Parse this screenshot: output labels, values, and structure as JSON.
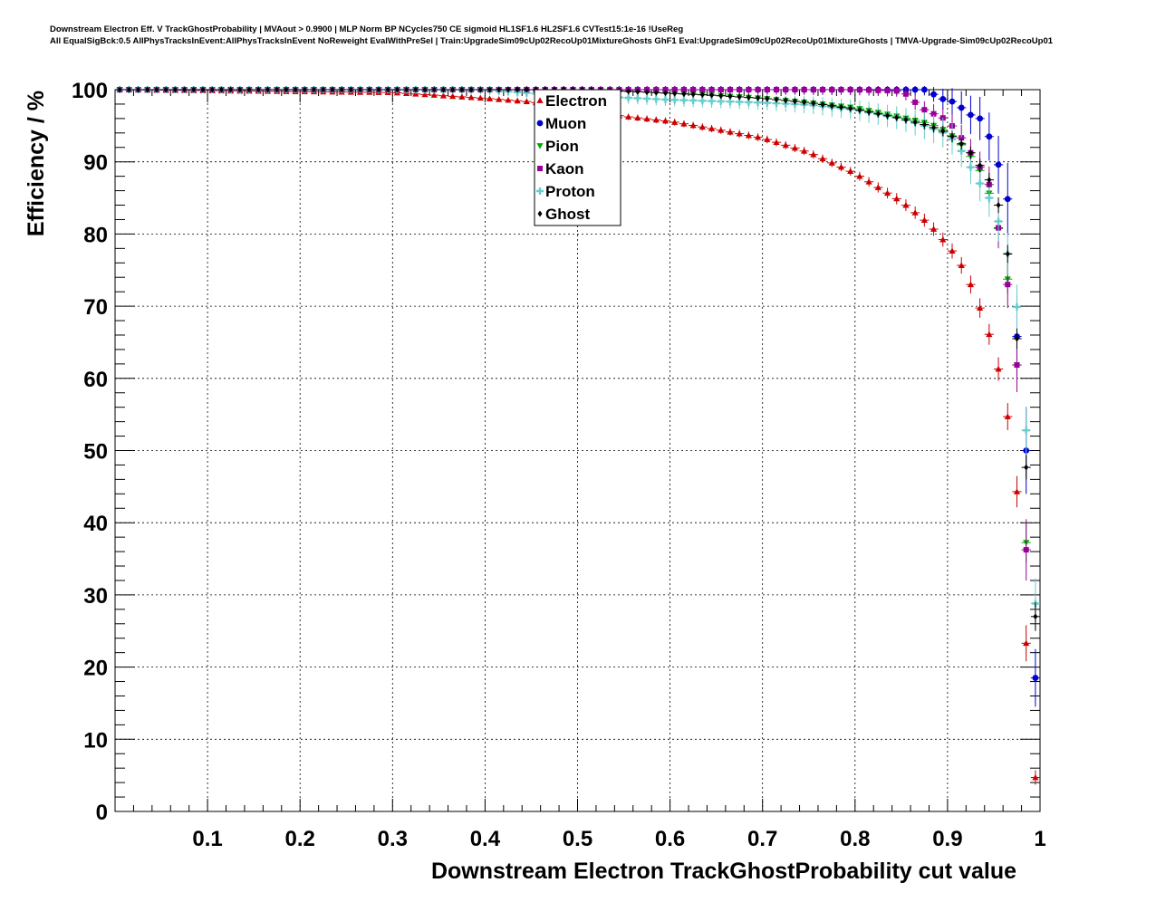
{
  "chart_data": {
    "type": "scatter",
    "title_lines": [
      "Downstream Electron Eff. V TrackGhostProbability | MVAout > 0.9900 | MLP Norm BP NCycles750 CE sigmoid HL1SF1.6 HL2SF1.6 CVTest15:1e-16 !UseReg",
      "All EqualSigBck:0.5 AllPhysTracksInEvent:AllPhysTracksInEvent NoReweight EvalWithPreSel | Train:UpgradeSim09cUp02RecoUp01MixtureGhosts GhF1 Eval:UpgradeSim09cUp02RecoUp01MixtureGhosts | TMVA-Upgrade-Sim09cUp02RecoUp01"
    ],
    "xlabel": "Downstream Electron TrackGhostProbability cut value",
    "ylabel": "Efficiency / %",
    "xlim": [
      0,
      1
    ],
    "ylim": [
      0,
      100
    ],
    "x_tick_labels": [
      "0.1",
      "0.2",
      "0.3",
      "0.4",
      "0.5",
      "0.6",
      "0.7",
      "0.8",
      "0.9",
      "1"
    ],
    "y_tick_labels": [
      "0",
      "10",
      "20",
      "30",
      "40",
      "50",
      "60",
      "70",
      "80",
      "90",
      "100"
    ],
    "grid": true,
    "legend_position": "top-center",
    "series": [
      {
        "name": "Electron",
        "color": "#cc0000",
        "marker": "triangle-up",
        "anchors": [
          [
            0.0,
            100
          ],
          [
            0.3,
            99.6
          ],
          [
            0.35,
            99.2
          ],
          [
            0.4,
            98.8
          ],
          [
            0.45,
            98.3
          ],
          [
            0.5,
            97.3
          ],
          [
            0.55,
            96.3
          ],
          [
            0.6,
            95.6
          ],
          [
            0.65,
            94.5
          ],
          [
            0.7,
            93.3
          ],
          [
            0.75,
            91.3
          ],
          [
            0.8,
            88.4
          ],
          [
            0.85,
            84.5
          ],
          [
            0.88,
            81.4
          ],
          [
            0.9,
            78.5
          ],
          [
            0.91,
            76.8
          ],
          [
            0.92,
            74.5
          ],
          [
            0.93,
            71.5
          ],
          [
            0.94,
            68.0
          ],
          [
            0.95,
            64.2
          ],
          [
            0.96,
            58.4
          ],
          [
            0.97,
            51.0
          ],
          [
            0.98,
            37.6
          ],
          [
            0.985,
            23.3
          ],
          [
            0.99,
            18.5
          ],
          [
            0.995,
            4.7
          ]
        ],
        "err": [
          [
            0.0,
            0.1
          ],
          [
            0.8,
            0.6
          ],
          [
            0.9,
            1.0
          ],
          [
            0.95,
            1.5
          ],
          [
            0.97,
            2.0
          ],
          [
            0.985,
            2.5
          ],
          [
            0.995,
            1.0
          ]
        ]
      },
      {
        "name": "Muon",
        "color": "#0000cc",
        "marker": "circle",
        "anchors": [
          [
            0.0,
            100
          ],
          [
            0.88,
            100
          ],
          [
            0.89,
            98.7
          ],
          [
            0.9,
            98.7
          ],
          [
            0.91,
            98.0
          ],
          [
            0.92,
            97.0
          ],
          [
            0.93,
            96.0
          ],
          [
            0.94,
            96.0
          ],
          [
            0.95,
            91.0
          ],
          [
            0.96,
            88.2
          ],
          [
            0.97,
            81.5
          ],
          [
            0.975,
            65.8
          ],
          [
            0.985,
            50.0
          ],
          [
            0.995,
            18.5
          ]
        ],
        "err": [
          [
            0.0,
            0.1
          ],
          [
            0.88,
            0.8
          ],
          [
            0.92,
            2.5
          ],
          [
            0.95,
            3.5
          ],
          [
            0.97,
            5.5
          ],
          [
            0.985,
            6.0
          ],
          [
            0.995,
            4.0
          ]
        ]
      },
      {
        "name": "Pion",
        "color": "#00aa00",
        "marker": "triangle-down",
        "anchors": [
          [
            0.0,
            100
          ],
          [
            0.5,
            100
          ],
          [
            0.55,
            99.8
          ],
          [
            0.6,
            99.5
          ],
          [
            0.65,
            99.2
          ],
          [
            0.7,
            98.8
          ],
          [
            0.75,
            98.2
          ],
          [
            0.8,
            97.5
          ],
          [
            0.85,
            96.2
          ],
          [
            0.88,
            95.3
          ],
          [
            0.9,
            94.2
          ],
          [
            0.91,
            93.0
          ],
          [
            0.92,
            91.7
          ],
          [
            0.93,
            89.8
          ],
          [
            0.94,
            87.8
          ],
          [
            0.95,
            83.5
          ],
          [
            0.96,
            78.0
          ],
          [
            0.97,
            69.5
          ],
          [
            0.98,
            54.2
          ],
          [
            0.99,
            20.3
          ]
        ],
        "err": [
          [
            0.0,
            0.1
          ],
          [
            0.8,
            0.5
          ],
          [
            0.9,
            0.8
          ],
          [
            0.95,
            1.5
          ],
          [
            0.98,
            2.5
          ],
          [
            0.99,
            3.0
          ]
        ]
      },
      {
        "name": "Kaon",
        "color": "#990099",
        "marker": "square",
        "anchors": [
          [
            0.0,
            100
          ],
          [
            0.8,
            100
          ],
          [
            0.85,
            99.8
          ],
          [
            0.86,
            99.0
          ],
          [
            0.87,
            97.5
          ],
          [
            0.9,
            95.8
          ],
          [
            0.92,
            92.5
          ],
          [
            0.93,
            90.0
          ],
          [
            0.94,
            88.5
          ],
          [
            0.95,
            85.2
          ],
          [
            0.96,
            76.5
          ],
          [
            0.97,
            69.5
          ],
          [
            0.98,
            54.2
          ],
          [
            0.99,
            18.3
          ]
        ],
        "err": [
          [
            0.0,
            0.1
          ],
          [
            0.85,
            0.8
          ],
          [
            0.93,
            2.0
          ],
          [
            0.96,
            3.0
          ],
          [
            0.98,
            4.0
          ],
          [
            0.99,
            4.5
          ]
        ]
      },
      {
        "name": "Proton",
        "color": "#66cccc",
        "marker": "cross",
        "anchors": [
          [
            0.0,
            100
          ],
          [
            0.4,
            100
          ],
          [
            0.45,
            99.5
          ],
          [
            0.5,
            99.1
          ],
          [
            0.55,
            98.9
          ],
          [
            0.6,
            98.6
          ],
          [
            0.65,
            98.4
          ],
          [
            0.7,
            98.2
          ],
          [
            0.75,
            97.9
          ],
          [
            0.8,
            97.2
          ],
          [
            0.85,
            96.0
          ],
          [
            0.88,
            94.8
          ],
          [
            0.9,
            93.8
          ],
          [
            0.91,
            92.5
          ],
          [
            0.92,
            90.5
          ],
          [
            0.93,
            88.0
          ],
          [
            0.94,
            86.0
          ],
          [
            0.95,
            84.0
          ],
          [
            0.96,
            79.5
          ],
          [
            0.97,
            75.0
          ],
          [
            0.98,
            64.8
          ],
          [
            0.995,
            28.8
          ]
        ],
        "err": [
          [
            0.0,
            0.2
          ],
          [
            0.7,
            1.0
          ],
          [
            0.85,
            1.6
          ],
          [
            0.93,
            2.4
          ],
          [
            0.97,
            3.0
          ],
          [
            0.995,
            3.5
          ]
        ]
      },
      {
        "name": "Ghost",
        "color": "#000000",
        "marker": "diamond",
        "anchors": [
          [
            0.0,
            100
          ],
          [
            0.5,
            100
          ],
          [
            0.55,
            99.8
          ],
          [
            0.6,
            99.5
          ],
          [
            0.65,
            99.2
          ],
          [
            0.7,
            98.8
          ],
          [
            0.75,
            98.2
          ],
          [
            0.8,
            97.3
          ],
          [
            0.85,
            96.0
          ],
          [
            0.88,
            95.0
          ],
          [
            0.9,
            94.0
          ],
          [
            0.92,
            92.0
          ],
          [
            0.93,
            90.5
          ],
          [
            0.94,
            88.5
          ],
          [
            0.95,
            86.5
          ],
          [
            0.96,
            81.5
          ],
          [
            0.97,
            73.0
          ],
          [
            0.98,
            58.0
          ],
          [
            0.995,
            27.0
          ]
        ],
        "err": [
          [
            0.0,
            0.1
          ],
          [
            0.85,
            0.5
          ],
          [
            0.95,
            1.0
          ],
          [
            0.98,
            1.5
          ],
          [
            0.995,
            2.0
          ]
        ]
      }
    ]
  }
}
